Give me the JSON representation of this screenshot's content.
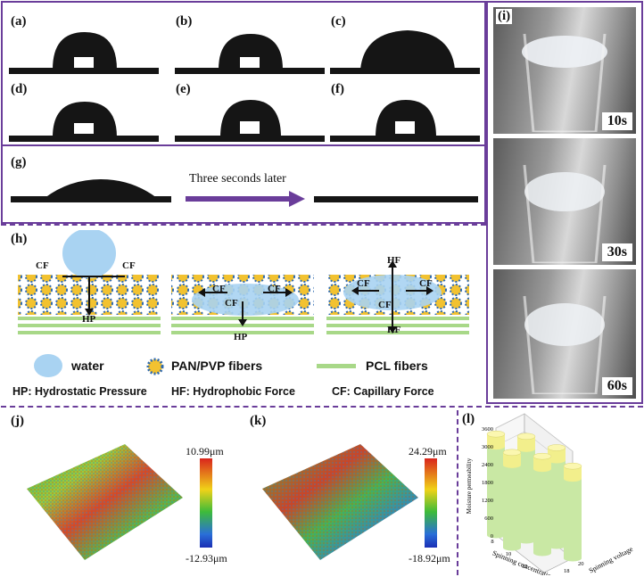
{
  "panels": {
    "a": "(a)",
    "b": "(b)",
    "c": "(c)",
    "d": "(d)",
    "e": "(e)",
    "f": "(f)",
    "g": "(g)",
    "h": "(h)",
    "i": "(i)",
    "j": "(j)",
    "k": "(k)",
    "l": "(l)"
  },
  "g_panel": {
    "arrow_text": "Three seconds later"
  },
  "h_panel": {
    "force_labels": {
      "cf": "CF",
      "hp": "HP",
      "hf": "HF"
    },
    "legend": {
      "water": "water",
      "pan_pvp": "PAN/PVP fibers",
      "pcl": "PCL fibers"
    },
    "abbreviations": {
      "hp": "HP: Hydrostatic Pressure",
      "hf": "HF: Hydrophobic Force",
      "cf": "CF: Capillary Force"
    }
  },
  "i_panel": {
    "times": [
      "10s",
      "30s",
      "60s"
    ]
  },
  "j_panel": {
    "max": "10.99μm",
    "min": "-12.93μm"
  },
  "k_panel": {
    "max": "24.29μm",
    "min": "-18.92μm"
  },
  "chart_data": {
    "type": "bar",
    "title": "",
    "zlabel": "Moisture permeability",
    "xlabel": "Spinning concentration",
    "ylabel": "Spinning voltage",
    "z_ticks": [
      "0",
      "600",
      "1200",
      "1800",
      "2400",
      "3000",
      "3600"
    ],
    "x_ticks": [
      "8",
      "10",
      "12",
      "14"
    ],
    "y_ticks": [
      "16",
      "18",
      "20"
    ],
    "zlim": [
      0,
      3600
    ],
    "bars": [
      {
        "concentration": 8,
        "voltage": 16,
        "value": 3400
      },
      {
        "concentration": 10,
        "voltage": 18,
        "value": 3500
      },
      {
        "concentration": 12,
        "voltage": 20,
        "value": 3300
      },
      {
        "concentration": 10,
        "voltage": 16,
        "value": 3200
      },
      {
        "concentration": 12,
        "voltage": 18,
        "value": 3250
      },
      {
        "concentration": 14,
        "voltage": 20,
        "value": 3100
      }
    ],
    "colors": {
      "body": "#c9e8a4",
      "top": "#f2ef8c"
    }
  },
  "colors": {
    "frame": "#6a3d9a",
    "arrow": "#6a3d9a",
    "fiber": "#f2c230",
    "water": "#a9d3f2"
  }
}
